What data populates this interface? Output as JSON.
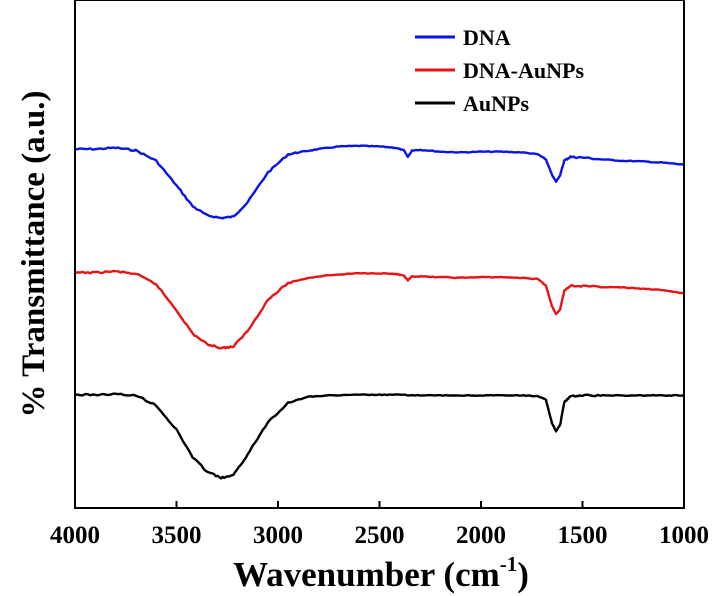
{
  "chart_data": {
    "type": "line",
    "title": "",
    "xlabel": "Wavenumber (cm",
    "xlabel_sup": "-1",
    "xlabel_end": ")",
    "ylabel": "% Transmittance (a.u.)",
    "xlim": [
      4000,
      1000
    ],
    "x_reversed": true,
    "xticks": [
      "4000",
      "3500",
      "3000",
      "2500",
      "2000",
      "1500",
      "1000"
    ],
    "y_ticks_shown": false,
    "grid": false,
    "legend_position": "top-right",
    "series": [
      {
        "name": "DNA",
        "color": "#0a14e6",
        "offset": 2.0,
        "points": [
          [
            4000,
            0.53
          ],
          [
            3900,
            0.53
          ],
          [
            3800,
            0.54
          ],
          [
            3700,
            0.52
          ],
          [
            3600,
            0.44
          ],
          [
            3500,
            0.25
          ],
          [
            3420,
            0.09
          ],
          [
            3350,
            0.02
          ],
          [
            3280,
            0.0
          ],
          [
            3220,
            0.01
          ],
          [
            3150,
            0.12
          ],
          [
            3050,
            0.35
          ],
          [
            2950,
            0.49
          ],
          [
            2880,
            0.51
          ],
          [
            2800,
            0.53
          ],
          [
            2700,
            0.55
          ],
          [
            2600,
            0.555
          ],
          [
            2500,
            0.55
          ],
          [
            2420,
            0.54
          ],
          [
            2380,
            0.52
          ],
          [
            2360,
            0.47
          ],
          [
            2340,
            0.52
          ],
          [
            2300,
            0.525
          ],
          [
            2200,
            0.51
          ],
          [
            2100,
            0.505
          ],
          [
            2000,
            0.51
          ],
          [
            1900,
            0.51
          ],
          [
            1800,
            0.505
          ],
          [
            1720,
            0.49
          ],
          [
            1680,
            0.45
          ],
          [
            1650,
            0.33
          ],
          [
            1630,
            0.28
          ],
          [
            1610,
            0.33
          ],
          [
            1590,
            0.44
          ],
          [
            1560,
            0.47
          ],
          [
            1500,
            0.465
          ],
          [
            1400,
            0.45
          ],
          [
            1300,
            0.44
          ],
          [
            1200,
            0.435
          ],
          [
            1100,
            0.425
          ],
          [
            1000,
            0.41
          ]
        ]
      },
      {
        "name": "DNA-AuNPs",
        "color": "#e61414",
        "offset": 1.0,
        "points": [
          [
            4000,
            0.58
          ],
          [
            3900,
            0.58
          ],
          [
            3800,
            0.59
          ],
          [
            3700,
            0.57
          ],
          [
            3600,
            0.49
          ],
          [
            3500,
            0.29
          ],
          [
            3420,
            0.11
          ],
          [
            3350,
            0.03
          ],
          [
            3280,
            0.0
          ],
          [
            3220,
            0.01
          ],
          [
            3150,
            0.13
          ],
          [
            3050,
            0.37
          ],
          [
            2950,
            0.5
          ],
          [
            2850,
            0.54
          ],
          [
            2750,
            0.56
          ],
          [
            2600,
            0.575
          ],
          [
            2500,
            0.575
          ],
          [
            2420,
            0.57
          ],
          [
            2380,
            0.555
          ],
          [
            2360,
            0.52
          ],
          [
            2340,
            0.55
          ],
          [
            2300,
            0.55
          ],
          [
            2200,
            0.545
          ],
          [
            2100,
            0.54
          ],
          [
            2000,
            0.545
          ],
          [
            1900,
            0.545
          ],
          [
            1800,
            0.54
          ],
          [
            1720,
            0.53
          ],
          [
            1680,
            0.48
          ],
          [
            1650,
            0.32
          ],
          [
            1630,
            0.26
          ],
          [
            1610,
            0.3
          ],
          [
            1590,
            0.44
          ],
          [
            1560,
            0.48
          ],
          [
            1500,
            0.475
          ],
          [
            1400,
            0.47
          ],
          [
            1300,
            0.465
          ],
          [
            1200,
            0.455
          ],
          [
            1100,
            0.445
          ],
          [
            1000,
            0.42
          ]
        ]
      },
      {
        "name": "AuNPs",
        "color": "#000000",
        "offset": 0.0,
        "points": [
          [
            4000,
            0.64
          ],
          [
            3900,
            0.64
          ],
          [
            3800,
            0.645
          ],
          [
            3700,
            0.635
          ],
          [
            3600,
            0.56
          ],
          [
            3500,
            0.37
          ],
          [
            3420,
            0.16
          ],
          [
            3350,
            0.05
          ],
          [
            3280,
            0.0
          ],
          [
            3220,
            0.02
          ],
          [
            3150,
            0.18
          ],
          [
            3050,
            0.43
          ],
          [
            2950,
            0.58
          ],
          [
            2850,
            0.625
          ],
          [
            2750,
            0.635
          ],
          [
            2600,
            0.64
          ],
          [
            2500,
            0.64
          ],
          [
            2400,
            0.64
          ],
          [
            2300,
            0.635
          ],
          [
            2200,
            0.635
          ],
          [
            2100,
            0.635
          ],
          [
            2000,
            0.635
          ],
          [
            1900,
            0.635
          ],
          [
            1800,
            0.635
          ],
          [
            1720,
            0.63
          ],
          [
            1680,
            0.6
          ],
          [
            1650,
            0.42
          ],
          [
            1630,
            0.36
          ],
          [
            1610,
            0.41
          ],
          [
            1590,
            0.58
          ],
          [
            1560,
            0.63
          ],
          [
            1500,
            0.635
          ],
          [
            1400,
            0.635
          ],
          [
            1300,
            0.635
          ],
          [
            1200,
            0.635
          ],
          [
            1100,
            0.635
          ],
          [
            1000,
            0.635
          ]
        ]
      }
    ]
  }
}
